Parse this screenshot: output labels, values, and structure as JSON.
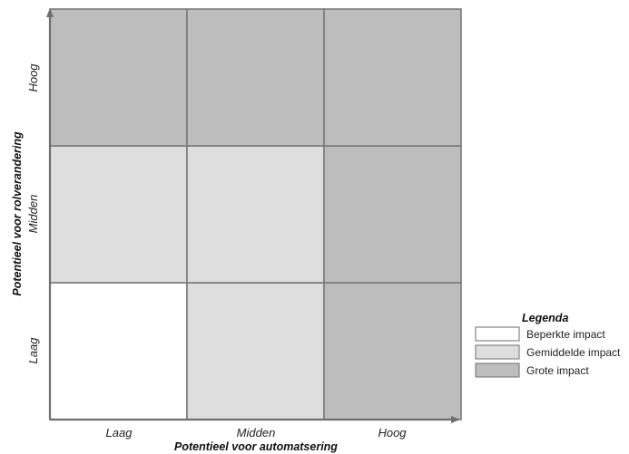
{
  "matrix": {
    "x_axis": {
      "title": "Potentieel voor automatsering",
      "ticks": [
        "Laag",
        "Midden",
        "Hoog"
      ]
    },
    "y_axis": {
      "title": "Potentieel voor rolverandering",
      "ticks": [
        "Laag",
        "Midden",
        "Hoog"
      ]
    },
    "cells_bottom_to_top": [
      [
        "low",
        "mid",
        "high"
      ],
      [
        "mid",
        "mid",
        "high"
      ],
      [
        "high",
        "high",
        "high"
      ]
    ]
  },
  "legend": {
    "title": "Legenda",
    "items": [
      {
        "key": "low",
        "label": "Beperkte impact",
        "color": "#ffffff"
      },
      {
        "key": "mid",
        "label": "Gemiddelde  impact",
        "color": "#dedede"
      },
      {
        "key": "high",
        "label": "Grote impact",
        "color": "#bdbdbd"
      }
    ]
  }
}
